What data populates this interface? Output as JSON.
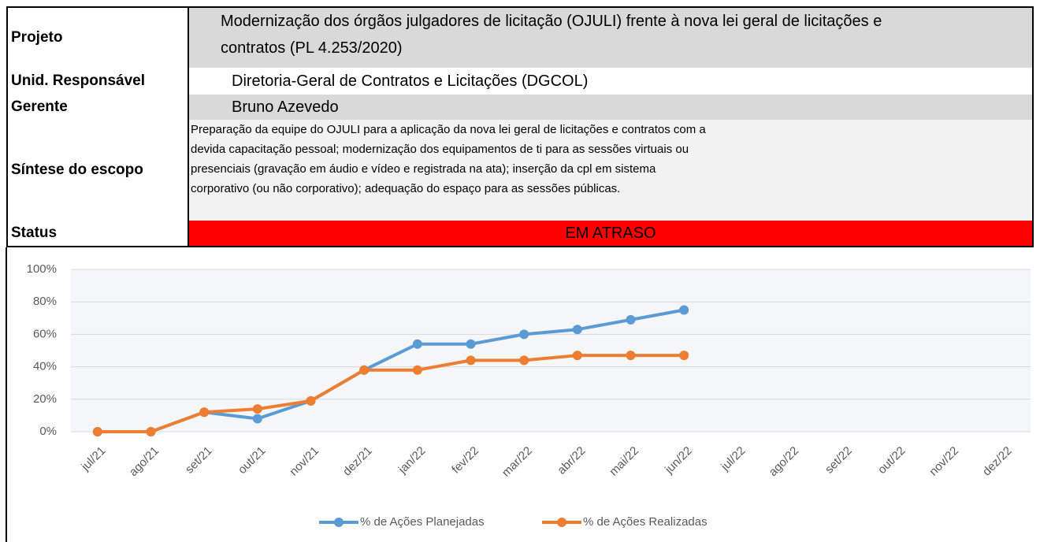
{
  "table": {
    "rows": [
      {
        "label": "Projeto",
        "value": [
          "Modernização dos órgãos julgadores de licitação (OJULI) frente à nova lei geral de licitações e",
          "contratos (PL 4.253/2020)"
        ]
      },
      {
        "label": "Unid. Responsável",
        "value": [
          "Diretoria-Geral de Contratos e Licitações (DGCOL)"
        ]
      },
      {
        "label": "Gerente",
        "value": [
          "Bruno Azevedo"
        ]
      },
      {
        "label": "Síntese do escopo",
        "value": [
          "Preparação da equipe do OJULI para a aplicação da nova lei geral de licitações e contratos com a",
          "devida capacitação pessoal; modernização dos equipamentos de ti para as sessões virtuais ou",
          "presenciais (gravação em áudio e vídeo e registrada na ata); inserção da cpl em sistema",
          "corporativo (ou não corporativo); adequação do espaço para as sessões públicas."
        ]
      },
      {
        "label": "Status",
        "value": [
          "EM ATRASO"
        ]
      }
    ]
  },
  "chart_data": {
    "type": "line",
    "categories": [
      "jul/21",
      "ago/21",
      "set/21",
      "out/21",
      "nov/21",
      "dez/21",
      "jan/22",
      "fev/22",
      "mar/22",
      "abr/22",
      "mai/22",
      "jun/22",
      "jul/22",
      "ago/22",
      "set/22",
      "out/22",
      "nov/22",
      "dez/22"
    ],
    "series": [
      {
        "name": "% de Ações Planejadas",
        "color": "#5b9bd5",
        "values": [
          0,
          0,
          12,
          8,
          19,
          38,
          54,
          54,
          60,
          63,
          69,
          75,
          null,
          null,
          null,
          null,
          null,
          null
        ]
      },
      {
        "name": "% de Ações Realizadas",
        "color": "#ed7d31",
        "values": [
          0,
          0,
          12,
          14,
          19,
          38,
          38,
          44,
          44,
          47,
          47,
          47,
          null,
          null,
          null,
          null,
          null,
          null
        ]
      }
    ],
    "ylim": [
      0,
      100
    ],
    "yticks": [
      {
        "value": 0,
        "label": "0%"
      },
      {
        "value": 20,
        "label": "20%"
      },
      {
        "value": 40,
        "label": "40%"
      },
      {
        "value": 60,
        "label": "60%"
      },
      {
        "value": 80,
        "label": "80%"
      },
      {
        "value": 100,
        "label": "100%"
      }
    ],
    "grid": true,
    "legend": "bottom"
  }
}
